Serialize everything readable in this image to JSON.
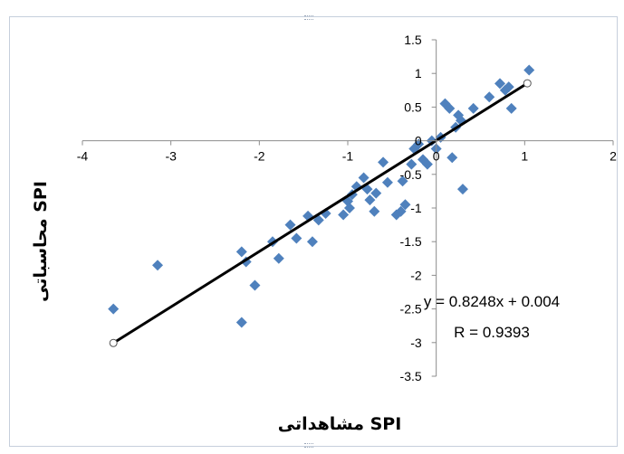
{
  "chart_data": {
    "type": "scatter",
    "xlabel": "SPI مشاهداتی",
    "ylabel": "SPI محاسباتی",
    "xlim": [
      -4,
      2
    ],
    "ylim": [
      -3.5,
      1.5
    ],
    "x_ticks": [
      -4,
      -3,
      -2,
      -1,
      0,
      1,
      2
    ],
    "y_ticks": [
      -3.5,
      -3,
      -2.5,
      -2,
      -1.5,
      -1,
      -0.5,
      0,
      0.5,
      1,
      1.5
    ],
    "x_tick_labels": [
      "-4",
      "-3",
      "-2",
      "-1",
      "0",
      "1",
      "2"
    ],
    "y_tick_labels": [
      "-3.5",
      "-3",
      "-2.5",
      "-2",
      "-1.5",
      "-1",
      "-0.5",
      "0",
      "0.5",
      "1",
      "1.5"
    ],
    "grid": false,
    "series": [
      {
        "color": "#4f81bd",
        "marker": "diamond",
        "points": [
          [
            -3.65,
            -2.5
          ],
          [
            -3.15,
            -1.85
          ],
          [
            -2.2,
            -2.7
          ],
          [
            -2.2,
            -1.65
          ],
          [
            -2.15,
            -1.8
          ],
          [
            -2.05,
            -2.15
          ],
          [
            -1.85,
            -1.5
          ],
          [
            -1.78,
            -1.75
          ],
          [
            -1.65,
            -1.25
          ],
          [
            -1.58,
            -1.45
          ],
          [
            -1.45,
            -1.12
          ],
          [
            -1.4,
            -1.5
          ],
          [
            -1.33,
            -1.18
          ],
          [
            -1.25,
            -1.08
          ],
          [
            -1.05,
            -1.1
          ],
          [
            -1.0,
            -0.9
          ],
          [
            -0.98,
            -1.0
          ],
          [
            -0.95,
            -0.8
          ],
          [
            -0.9,
            -0.68
          ],
          [
            -0.82,
            -0.55
          ],
          [
            -0.78,
            -0.72
          ],
          [
            -0.75,
            -0.88
          ],
          [
            -0.7,
            -1.05
          ],
          [
            -0.68,
            -0.78
          ],
          [
            -0.6,
            -0.32
          ],
          [
            -0.55,
            -0.62
          ],
          [
            -0.45,
            -1.1
          ],
          [
            -0.4,
            -1.05
          ],
          [
            -0.35,
            -0.95
          ],
          [
            -0.38,
            -0.6
          ],
          [
            -0.28,
            -0.35
          ],
          [
            -0.25,
            -0.12
          ],
          [
            -0.2,
            -0.05
          ],
          [
            -0.15,
            -0.28
          ],
          [
            -0.1,
            -0.35
          ],
          [
            -0.05,
            0.0
          ],
          [
            0.0,
            -0.12
          ],
          [
            0.05,
            0.05
          ],
          [
            0.1,
            0.55
          ],
          [
            0.15,
            0.48
          ],
          [
            0.18,
            -0.25
          ],
          [
            0.22,
            0.2
          ],
          [
            0.25,
            0.38
          ],
          [
            0.28,
            0.3
          ],
          [
            0.3,
            -0.72
          ],
          [
            0.42,
            0.48
          ],
          [
            0.6,
            0.65
          ],
          [
            0.72,
            0.85
          ],
          [
            0.78,
            0.75
          ],
          [
            0.82,
            0.8
          ],
          [
            0.85,
            0.48
          ],
          [
            1.05,
            1.05
          ]
        ]
      }
    ],
    "trendline": {
      "slope": 0.8248,
      "intercept": 0.004,
      "x_range": [
        -3.65,
        1.03
      ],
      "color": "#000000"
    },
    "annotations": [
      "y = 0.8248x + 0.004",
      "R = 0.9393"
    ]
  }
}
